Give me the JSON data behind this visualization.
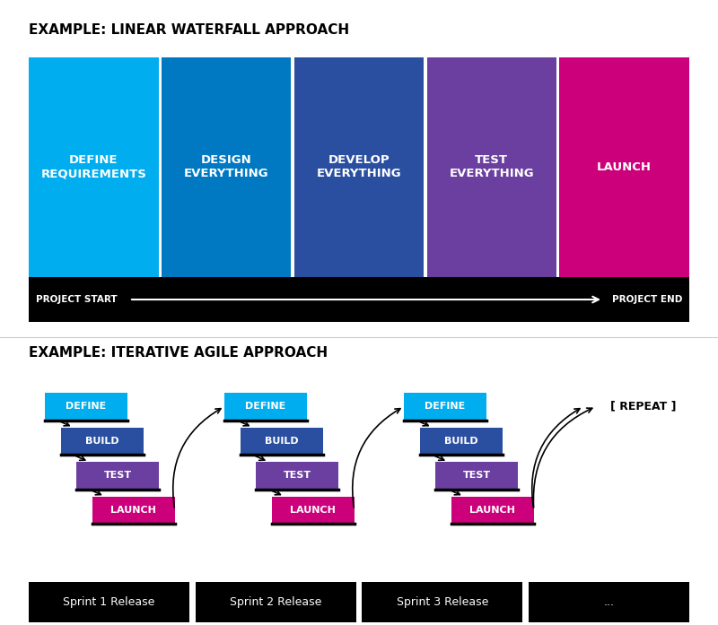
{
  "title1": "EXAMPLE: LINEAR WATERFALL APPROACH",
  "title2": "EXAMPLE: ITERATIVE AGILE APPROACH",
  "waterfall_phases": [
    {
      "label": "DEFINE\nREQUIREMENTS",
      "color": "#00AEEF"
    },
    {
      "label": "DESIGN\nEVERYTHING",
      "color": "#0079C2"
    },
    {
      "label": "DEVELOP\nEVERYTHING",
      "color": "#2B4FA0"
    },
    {
      "label": "TEST\nEVERYTHING",
      "color": "#6B3FA0"
    },
    {
      "label": "LAUNCH",
      "color": "#CC007A"
    }
  ],
  "agile_steps": [
    "DEFINE",
    "BUILD",
    "TEST",
    "LAUNCH"
  ],
  "agile_colors": [
    "#00AEEF",
    "#2B4FA0",
    "#6B3FA0",
    "#CC007A"
  ],
  "sprint_labels": [
    "Sprint 1 Release",
    "Sprint 2 Release",
    "Sprint 3 Release",
    "..."
  ],
  "repeat_label": "[ REPEAT ]",
  "black": "#000000",
  "white": "#FFFFFF",
  "bg": "#FFFFFF"
}
